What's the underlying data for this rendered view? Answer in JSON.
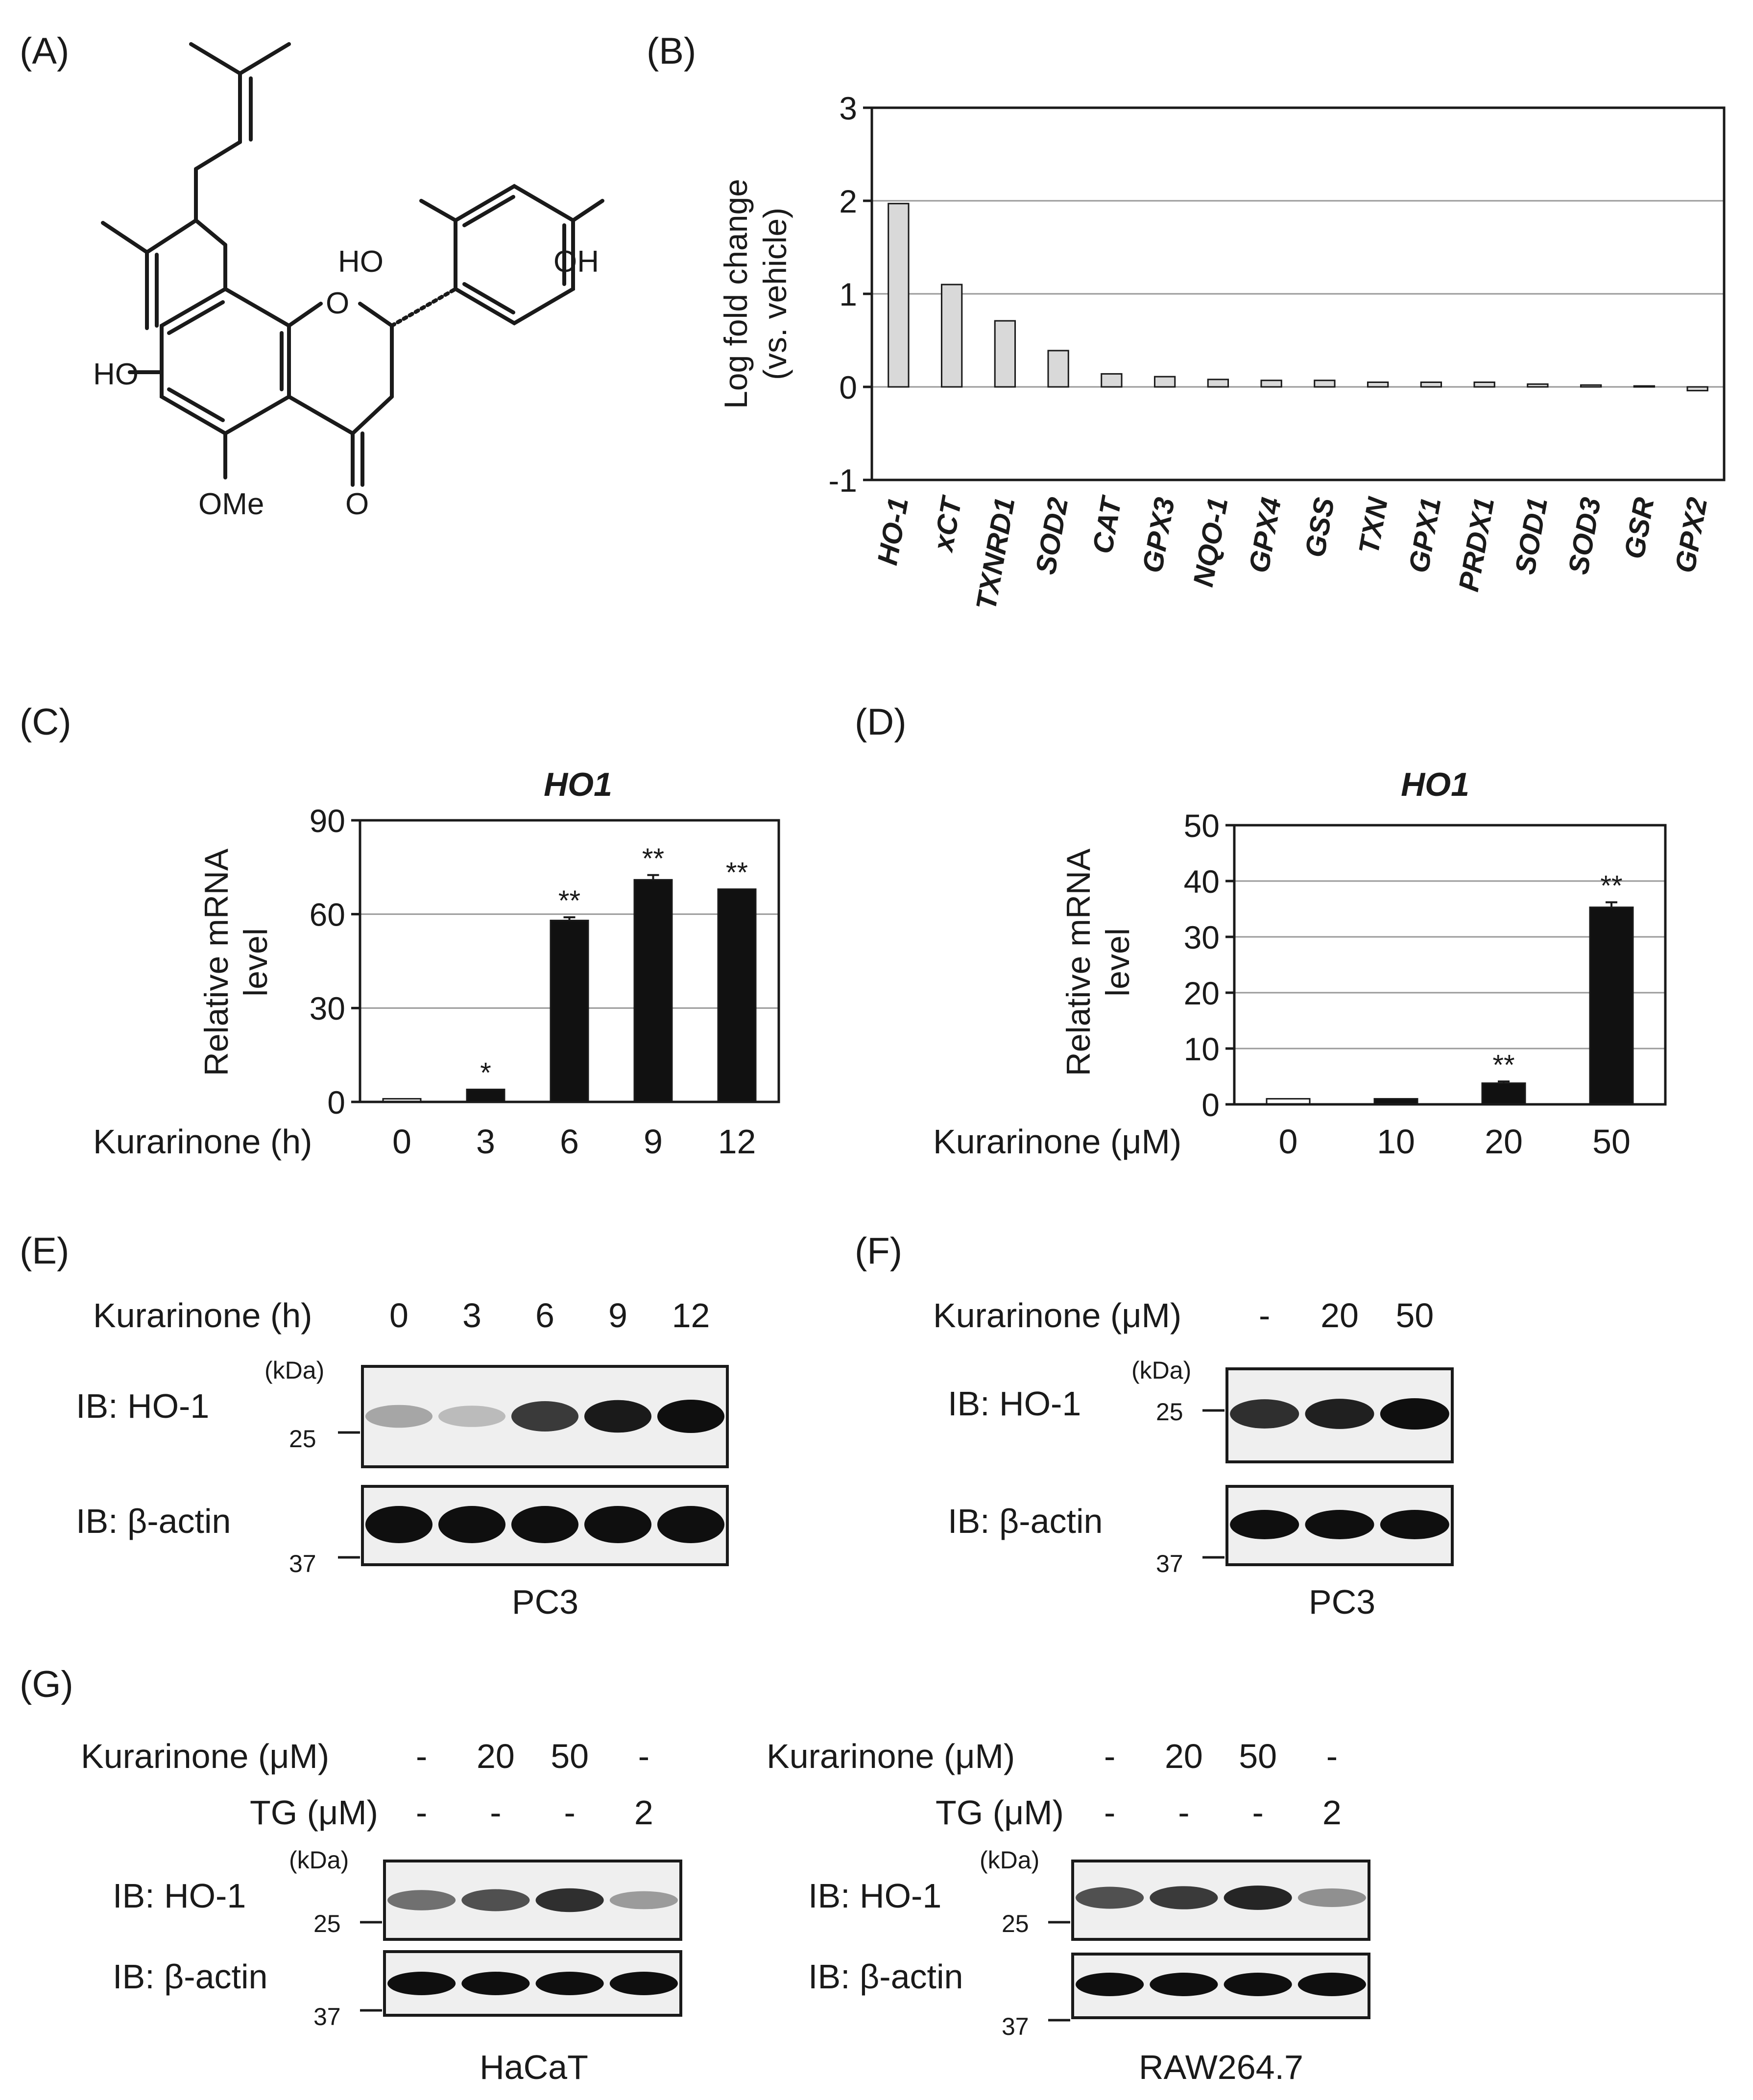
{
  "panels": {
    "A": "(A)",
    "B": "(B)",
    "C": "(C)",
    "D": "(D)",
    "E": "(E)",
    "F": "(F)",
    "G": "(G)"
  },
  "structure": {
    "ho_left": "HO",
    "ho_right": "HO",
    "oh_top": "OH",
    "ring_o": "O",
    "ome": "OMe",
    "ketone_o": "O"
  },
  "blots": {
    "kda": "(kDa)",
    "m25": "25",
    "m37": "37",
    "ib_ho1": "IB: HO-1",
    "ib_actin": "IB: β-actin",
    "E": {
      "header": "Kurarinone (h)",
      "lanes": [
        "0",
        "3",
        "6",
        "9",
        "12"
      ],
      "cell": "PC3",
      "ho1_intensity": [
        0.3,
        0.2,
        0.8,
        0.95,
        1.0
      ],
      "actin_intensity": [
        1,
        1,
        1,
        1,
        1
      ]
    },
    "F": {
      "header": "Kurarinone (μM)",
      "lanes": [
        "-",
        "20",
        "50"
      ],
      "cell": "PC3",
      "ho1_intensity": [
        0.85,
        0.92,
        1.0
      ],
      "actin_intensity": [
        1,
        1,
        1
      ]
    },
    "G1": {
      "header1": "Kurarinone (μM)",
      "lanes1": [
        "-",
        "20",
        "50",
        "-"
      ],
      "header2": "TG (μM)",
      "lanes2": [
        "-",
        "-",
        "-",
        "2"
      ],
      "cell": "HaCaT",
      "ho1_intensity": [
        0.55,
        0.7,
        0.85,
        0.35
      ],
      "actin_intensity": [
        1,
        1,
        1,
        1
      ]
    },
    "G2": {
      "header1": "Kurarinone (μM)",
      "lanes1": [
        "-",
        "20",
        "50",
        "-"
      ],
      "header2": "TG (μM)",
      "lanes2": [
        "-",
        "-",
        "-",
        "2"
      ],
      "cell": "RAW264.7",
      "ho1_intensity": [
        0.7,
        0.8,
        0.9,
        0.4
      ],
      "actin_intensity": [
        1,
        1,
        1,
        1
      ]
    }
  },
  "chart_data": [
    {
      "id": "B",
      "type": "bar",
      "ylabel_line1": "Log fold change",
      "ylabel_line2": "(vs. vehicle)",
      "ylim": [
        -1,
        3
      ],
      "yticks": [
        -1,
        0,
        1,
        2,
        3
      ],
      "grid": true,
      "bar_color": "#d9d9d9",
      "categories": [
        "HO-1",
        "xCT",
        "TXNRD1",
        "SOD2",
        "CAT",
        "GPX3",
        "NQO-1",
        "GPX4",
        "GSS",
        "TXN",
        "GPX1",
        "PRDX1",
        "SOD1",
        "SOD3",
        "GSR",
        "GPX2"
      ],
      "values": [
        1.97,
        1.1,
        0.71,
        0.39,
        0.14,
        0.11,
        0.08,
        0.07,
        0.07,
        0.05,
        0.05,
        0.05,
        0.03,
        0.02,
        0.01,
        -0.04
      ]
    },
    {
      "id": "C",
      "type": "bar",
      "title": "HO1",
      "ylabel_line1": "Relative mRNA",
      "ylabel_line2": "level",
      "xlabel": "Kurarinone (h)",
      "ylim": [
        0,
        90
      ],
      "yticks": [
        0,
        30,
        60,
        90
      ],
      "grid": true,
      "categories": [
        "0",
        "3",
        "6",
        "9",
        "12"
      ],
      "values": [
        1,
        4,
        58,
        71,
        68
      ],
      "errors": [
        0,
        0,
        1,
        1.5,
        0
      ],
      "significance": [
        "",
        "*",
        "**",
        "**",
        "**"
      ]
    },
    {
      "id": "D",
      "type": "bar",
      "title": "HO1",
      "ylabel_line1": "Relative mRNA",
      "ylabel_line2": "level",
      "xlabel": "Kurarinone (μM)",
      "ylim": [
        0,
        50
      ],
      "yticks": [
        0,
        10,
        20,
        30,
        40,
        50
      ],
      "grid": true,
      "categories": [
        "0",
        "10",
        "20",
        "50"
      ],
      "values": [
        1,
        1,
        3.8,
        35.3
      ],
      "errors": [
        0,
        0,
        0.3,
        0.9
      ],
      "significance": [
        "",
        "",
        "**",
        "**"
      ]
    }
  ]
}
